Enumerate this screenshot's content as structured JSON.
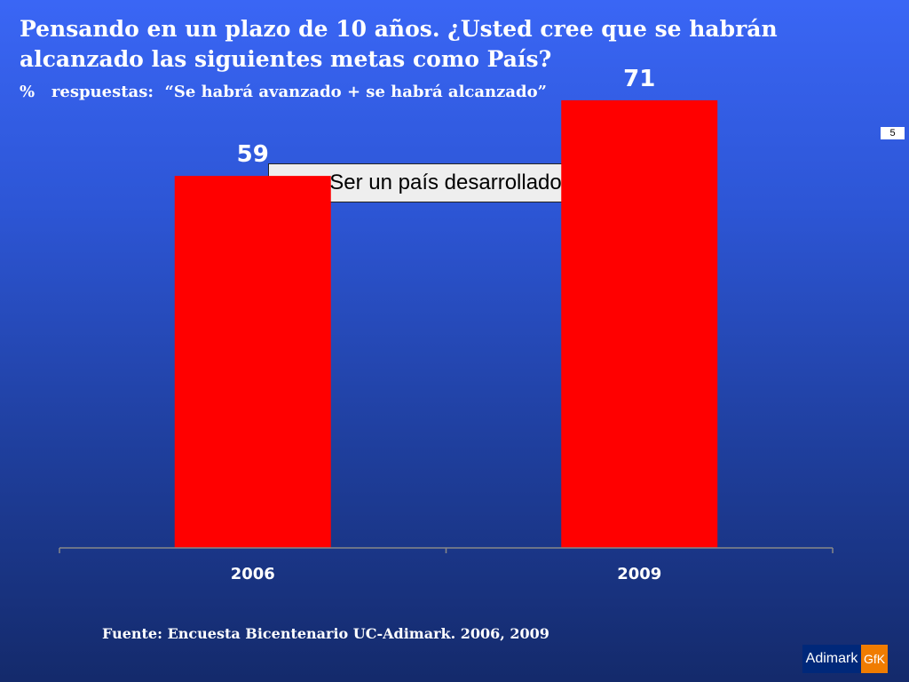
{
  "slide": {
    "title": "Pensando en un plazo de 10 años. ¿Usted cree que se habrán alcanzado las siguientes  metas como País?",
    "subtitle": "%   respuestas:  “Se habrá avanzado + se habrá alcanzado”",
    "page_number": "5",
    "source": "Fuente: Encuesta Bicentenario UC-Adimark. 2006, 2009",
    "logo": {
      "left_text": "Adimark",
      "right_text": "GfK",
      "left_color": "#00287a",
      "right_color": "#f07c00"
    }
  },
  "chart_data": {
    "type": "bar",
    "categories": [
      "2006",
      "2009"
    ],
    "series": [
      {
        "name": "Ser un país desarrollado",
        "values": [
          59,
          71
        ],
        "color": "#ff0000"
      }
    ],
    "data_labels": [
      "59",
      "71"
    ],
    "ylim": [
      0,
      100
    ],
    "grid": false,
    "legend_position": "top-center"
  }
}
